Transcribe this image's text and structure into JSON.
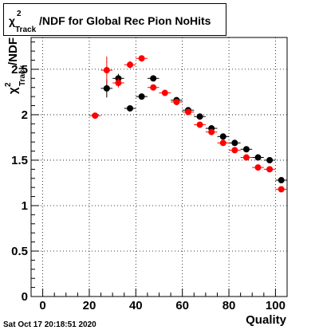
{
  "title": "χ²Track/NDF for Global Rec Pion NoHits",
  "title_parts": {
    "chi": "χ",
    "sup": "2",
    "sub": "Track",
    "rest": "/NDF for Global Rec Pion NoHits"
  },
  "ylabel_parts": {
    "chi": "χ",
    "sup": "2",
    "sub": "Track",
    "rest": "/NDF"
  },
  "timestamp": "Sat Oct 17 20:18:51 2020",
  "chart_data": {
    "type": "scatter",
    "title": "χ²Track/NDF for Global Rec Pion NoHits",
    "xlabel": "Quality",
    "ylabel": "χ²Track/NDF",
    "xlim": [
      -5,
      105
    ],
    "ylim": [
      0,
      2.85
    ],
    "grid": true,
    "x_ticks": [
      0,
      20,
      40,
      60,
      80,
      100
    ],
    "y_ticks": [
      0,
      0.5,
      1,
      1.5,
      2,
      2.5
    ],
    "x_tick_labels": [
      "0",
      "20",
      "40",
      "60",
      "80",
      "100"
    ],
    "y_tick_labels": [
      "0",
      "0.5",
      "1",
      "1.5",
      "2",
      "2.5"
    ],
    "series": [
      {
        "color": "#000000",
        "points": [
          {
            "x": 27.5,
            "y": 2.29,
            "yerr": 0.1
          },
          {
            "x": 32.5,
            "y": 2.4,
            "yerr": 0.05
          },
          {
            "x": 37.5,
            "y": 2.07,
            "yerr": 0.03
          },
          {
            "x": 42.5,
            "y": 2.2,
            "yerr": 0.02
          },
          {
            "x": 47.5,
            "y": 2.4,
            "yerr": 0.02
          },
          {
            "x": 57.5,
            "y": 2.16,
            "yerr": 0.02
          },
          {
            "x": 62.5,
            "y": 2.05,
            "yerr": 0.02
          },
          {
            "x": 67.5,
            "y": 1.98,
            "yerr": 0.02
          },
          {
            "x": 72.5,
            "y": 1.85,
            "yerr": 0.02
          },
          {
            "x": 77.5,
            "y": 1.76,
            "yerr": 0.02
          },
          {
            "x": 82.5,
            "y": 1.69,
            "yerr": 0.02
          },
          {
            "x": 87.5,
            "y": 1.62,
            "yerr": 0.02
          },
          {
            "x": 92.5,
            "y": 1.53,
            "yerr": 0.02
          },
          {
            "x": 97.5,
            "y": 1.5,
            "yerr": 0.02
          },
          {
            "x": 102.5,
            "y": 1.28,
            "yerr": 0.02
          }
        ]
      },
      {
        "color": "#ff0000",
        "points": [
          {
            "x": 22.5,
            "y": 1.99,
            "yerr": 0.02
          },
          {
            "x": 27.5,
            "y": 2.49,
            "yerr": 0.15
          },
          {
            "x": 32.5,
            "y": 2.35,
            "yerr": 0.05
          },
          {
            "x": 37.5,
            "y": 2.55,
            "yerr": 0.04
          },
          {
            "x": 42.5,
            "y": 2.62,
            "yerr": 0.02
          },
          {
            "x": 47.5,
            "y": 2.3,
            "yerr": 0.02
          },
          {
            "x": 52.5,
            "y": 2.24,
            "yerr": 0.02
          },
          {
            "x": 57.5,
            "y": 2.14,
            "yerr": 0.02
          },
          {
            "x": 62.5,
            "y": 2.03,
            "yerr": 0.02
          },
          {
            "x": 67.5,
            "y": 1.89,
            "yerr": 0.02
          },
          {
            "x": 72.5,
            "y": 1.81,
            "yerr": 0.02
          },
          {
            "x": 77.5,
            "y": 1.69,
            "yerr": 0.02
          },
          {
            "x": 82.5,
            "y": 1.61,
            "yerr": 0.02
          },
          {
            "x": 87.5,
            "y": 1.53,
            "yerr": 0.02
          },
          {
            "x": 92.5,
            "y": 1.42,
            "yerr": 0.02
          },
          {
            "x": 97.5,
            "y": 1.4,
            "yerr": 0.02
          },
          {
            "x": 102.5,
            "y": 1.18,
            "yerr": 0.02
          }
        ]
      }
    ]
  }
}
